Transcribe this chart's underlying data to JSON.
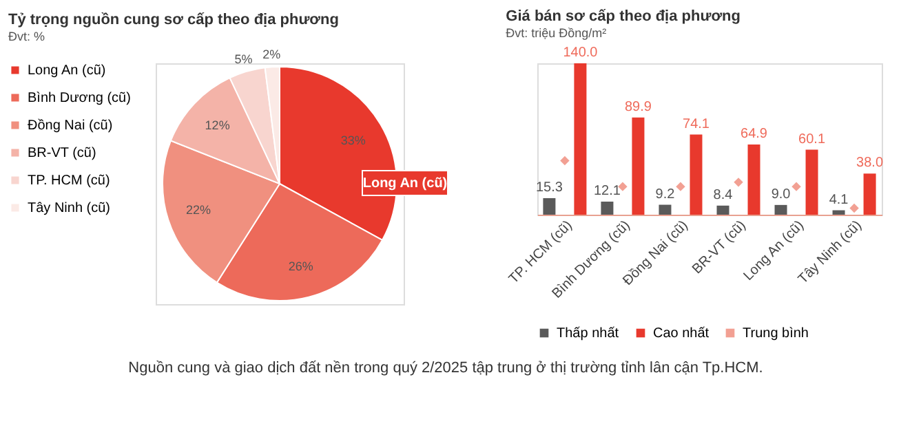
{
  "chart_data": [
    {
      "type": "pie",
      "title": "Tỷ trọng nguồn cung sơ cấp theo địa phương",
      "subtitle": "Đvt: %",
      "categories": [
        "Long An (cũ)",
        "Bình Dương (cũ)",
        "Đồng Nai (cũ)",
        "BR-VT (cũ)",
        "TP. HCM (cũ)",
        "Tây Ninh (cũ)"
      ],
      "values": [
        33,
        26,
        22,
        12,
        5,
        2
      ],
      "colors": [
        "#e8392d",
        "#ed6a5a",
        "#f0907f",
        "#f4b3a8",
        "#f8d5cf",
        "#fbeae6"
      ],
      "value_labels": [
        "33%",
        "26%",
        "22%",
        "12%",
        "5%",
        "2%"
      ],
      "legend": "left",
      "annotations": [
        "Long An (cũ)",
        "Nguồn cung và giao dịch đất nền trong quý 2/2025 tập trung ở thị trường tỉnh lân cận Tp.HCM."
      ]
    },
    {
      "type": "bar",
      "title": "Giá bán sơ cấp theo địa phương",
      "subtitle": "Đvt: triệu Đồng/m²",
      "categories": [
        "TP. HCM (cũ)",
        "Bình Dương (cũ)",
        "Đồng Nai (cũ)",
        "BR-VT (cũ)",
        "Long An (cũ)",
        "Tây Ninh (cũ)"
      ],
      "series": [
        {
          "name": "Thấp nhất",
          "color": "#5a5a5a",
          "values": [
            15.3,
            12.1,
            9.2,
            8.4,
            9.0,
            4.1
          ],
          "value_labels": [
            "15.3",
            "12.1",
            "9.2",
            "8.4",
            "9.0",
            "4.1"
          ]
        },
        {
          "name": "Cao nhất",
          "color": "#e8392d",
          "values": [
            140.0,
            89.9,
            74.1,
            64.9,
            60.1,
            38.0
          ],
          "value_labels": [
            "140.0",
            "89.9",
            "74.1",
            "64.9",
            "60.1",
            "38.0"
          ]
        },
        {
          "name": "Trung bình",
          "color": "#f2a093",
          "type": "scatter",
          "marker": "diamond",
          "values": [
            50,
            26,
            26,
            30,
            26,
            6
          ]
        }
      ],
      "legend": "bottom",
      "grid": false
    }
  ]
}
